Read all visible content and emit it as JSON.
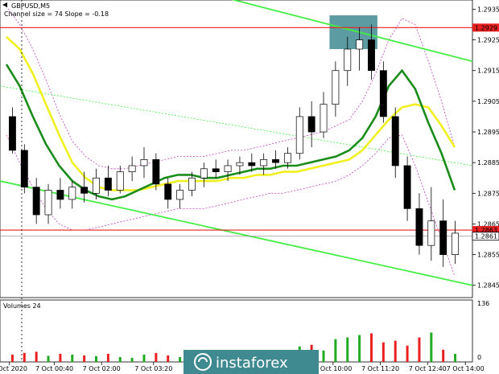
{
  "chart_data": {
    "type": "candlestick",
    "symbol_line": "GBPUSD,M5",
    "indicator_line": "Channel size = 74 Slope = -0.18",
    "volume_label": "Volumes 24",
    "y_axis_ticks": [
      "1.2935",
      "1.2925",
      "1.2915",
      "1.2905",
      "1.2895",
      "1.2885",
      "1.2875",
      "1.2865",
      "1.2855",
      "1.2845"
    ],
    "ylim": [
      1.2841,
      1.2938
    ],
    "volume_axis": {
      "max_label": "136",
      "min_label": "0",
      "max": 136
    },
    "x_axis_ticks": [
      "6 Oct 2020",
      "7 Oct 00:40",
      "7 Oct 02:00",
      "7 Oct 03:20",
      "7 Oct 04:",
      "7 Oct 10:00",
      "7 Oct 11:20",
      "7 Oct 12:40",
      "7 Oct 14:00"
    ],
    "price_markers": [
      {
        "label": "1.2929",
        "value": 1.2929,
        "color": "#e82020"
      },
      {
        "label": "1.2863",
        "value": 1.2863,
        "color": "#e82020"
      },
      {
        "label": "1.2861",
        "value": 1.2861,
        "color": "#ffffff"
      }
    ],
    "horizontal_levels": [
      1.2929,
      1.2863,
      1.2861
    ],
    "resistance_zone": {
      "price_from": 1.2922,
      "price_to": 1.2933,
      "color": "#3f8a90"
    },
    "ma_green": [
      1.2917,
      1.291,
      1.29,
      1.2891,
      1.2884,
      1.2879,
      1.2876,
      1.2874,
      1.2873,
      1.2874,
      1.2876,
      1.2878,
      1.288,
      1.2881,
      1.2881,
      1.288,
      1.288,
      1.2881,
      1.2882,
      1.2883,
      1.2883,
      1.2884,
      1.2884,
      1.2885,
      1.2886,
      1.2887,
      1.2889,
      1.2893,
      1.29,
      1.291,
      1.2915,
      1.2909,
      1.2898,
      1.2888,
      1.2876
    ],
    "ma_yellow": [
      1.2926,
      1.2922,
      1.2914,
      1.2904,
      1.2894,
      1.2885,
      1.288,
      1.2877,
      1.2876,
      1.2876,
      1.2876,
      1.2877,
      1.2878,
      1.2879,
      1.2879,
      1.2879,
      1.2879,
      1.288,
      1.288,
      1.2881,
      1.2881,
      1.2882,
      1.2882,
      1.2883,
      1.2884,
      1.2885,
      1.2886,
      1.2889,
      1.2894,
      1.2899,
      1.2903,
      1.2904,
      1.2903,
      1.2897,
      1.289
    ],
    "envelope_upper": [
      1.2936,
      1.293,
      1.2922,
      1.2912,
      1.2901,
      1.2892,
      1.2887,
      1.2884,
      1.2883,
      1.2883,
      1.2884,
      1.2885,
      1.2886,
      1.2887,
      1.2887,
      1.2887,
      1.2888,
      1.2889,
      1.2889,
      1.289,
      1.2891,
      1.2892,
      1.2893,
      1.2894,
      1.2895,
      1.2897,
      1.2899,
      1.2905,
      1.2914,
      1.2925,
      1.2932,
      1.293,
      1.2918,
      1.2905,
      1.289
    ],
    "envelope_lower": [
      1.2894,
      1.2885,
      1.2877,
      1.287,
      1.2865,
      1.2863,
      1.2863,
      1.2864,
      1.2865,
      1.2866,
      1.2867,
      1.2868,
      1.2869,
      1.287,
      1.287,
      1.287,
      1.2871,
      1.2872,
      1.2873,
      1.2874,
      1.2875,
      1.2875,
      1.2876,
      1.2877,
      1.2878,
      1.2879,
      1.2881,
      1.2884,
      1.2888,
      1.2893,
      1.2894,
      1.2884,
      1.2872,
      1.286,
      1.2848
    ],
    "channel_lines": [
      {
        "name": "upper",
        "color": "#44ee44",
        "from": [
          0.42,
          1.2941
        ],
        "to": [
          1.0,
          1.2918
        ]
      },
      {
        "name": "lower",
        "color": "#44ee44",
        "from": [
          0.0,
          1.2879
        ],
        "to": [
          1.0,
          1.2845
        ]
      },
      {
        "name": "middle",
        "color": "#44ee44",
        "dashed": true,
        "from": [
          0.0,
          1.291
        ],
        "to": [
          1.0,
          1.2884
        ]
      }
    ],
    "candles": [
      [
        1.29,
        1.2903,
        1.2888,
        1.2889
      ],
      [
        1.2889,
        1.2891,
        1.2875,
        1.2877
      ],
      [
        1.2877,
        1.288,
        1.2865,
        1.2868
      ],
      [
        1.2868,
        1.2878,
        1.2865,
        1.2876
      ],
      [
        1.2876,
        1.288,
        1.287,
        1.2873
      ],
      [
        1.2873,
        1.2879,
        1.287,
        1.2877
      ],
      [
        1.2877,
        1.2882,
        1.2872,
        1.2875
      ],
      [
        1.2875,
        1.2883,
        1.2873,
        1.288
      ],
      [
        1.288,
        1.2884,
        1.2874,
        1.2876
      ],
      [
        1.2876,
        1.2884,
        1.2875,
        1.2882
      ],
      [
        1.2882,
        1.2887,
        1.2879,
        1.2884
      ],
      [
        1.2884,
        1.289,
        1.288,
        1.2886
      ],
      [
        1.2886,
        1.2888,
        1.2876,
        1.2878
      ],
      [
        1.2878,
        1.288,
        1.287,
        1.2873
      ],
      [
        1.2873,
        1.2878,
        1.287,
        1.2876
      ],
      [
        1.2876,
        1.2882,
        1.2874,
        1.288
      ],
      [
        1.288,
        1.2885,
        1.2877,
        1.2883
      ],
      [
        1.2883,
        1.2886,
        1.288,
        1.2882
      ],
      [
        1.2882,
        1.2886,
        1.2879,
        1.2884
      ],
      [
        1.2884,
        1.2887,
        1.2881,
        1.2885
      ],
      [
        1.2885,
        1.2888,
        1.2882,
        1.2884
      ],
      [
        1.2884,
        1.2888,
        1.2881,
        1.2886
      ],
      [
        1.2886,
        1.2889,
        1.2883,
        1.2885
      ],
      [
        1.2885,
        1.289,
        1.2883,
        1.2888
      ],
      [
        1.2888,
        1.2903,
        1.2886,
        1.29
      ],
      [
        1.29,
        1.2905,
        1.289,
        1.2895
      ],
      [
        1.2895,
        1.2908,
        1.2893,
        1.2904
      ],
      [
        1.2904,
        1.2918,
        1.29,
        1.2915
      ],
      [
        1.2915,
        1.2926,
        1.291,
        1.2922
      ],
      [
        1.2922,
        1.2929,
        1.2915,
        1.2925
      ],
      [
        1.2925,
        1.293,
        1.2912,
        1.2915
      ],
      [
        1.2915,
        1.2918,
        1.2898,
        1.29
      ],
      [
        1.29,
        1.2903,
        1.288,
        1.2884
      ],
      [
        1.2884,
        1.2887,
        1.2866,
        1.287
      ],
      [
        1.287,
        1.2875,
        1.2855,
        1.2858
      ],
      [
        1.2858,
        1.2877,
        1.2853,
        1.2866
      ],
      [
        1.2866,
        1.2873,
        1.2851,
        1.2855
      ],
      [
        1.2855,
        1.2866,
        1.2852,
        1.2862
      ]
    ],
    "volumes": [
      18,
      22,
      25,
      15,
      20,
      18,
      16,
      14,
      20,
      12,
      10,
      18,
      22,
      16,
      12,
      10,
      14,
      12,
      16,
      14,
      12,
      10,
      14,
      12,
      38,
      42,
      28,
      56,
      60,
      66,
      70,
      48,
      52,
      40,
      60,
      72,
      30,
      20
    ],
    "channel_size": 74,
    "slope": -0.18,
    "watermark": "instaforex"
  }
}
